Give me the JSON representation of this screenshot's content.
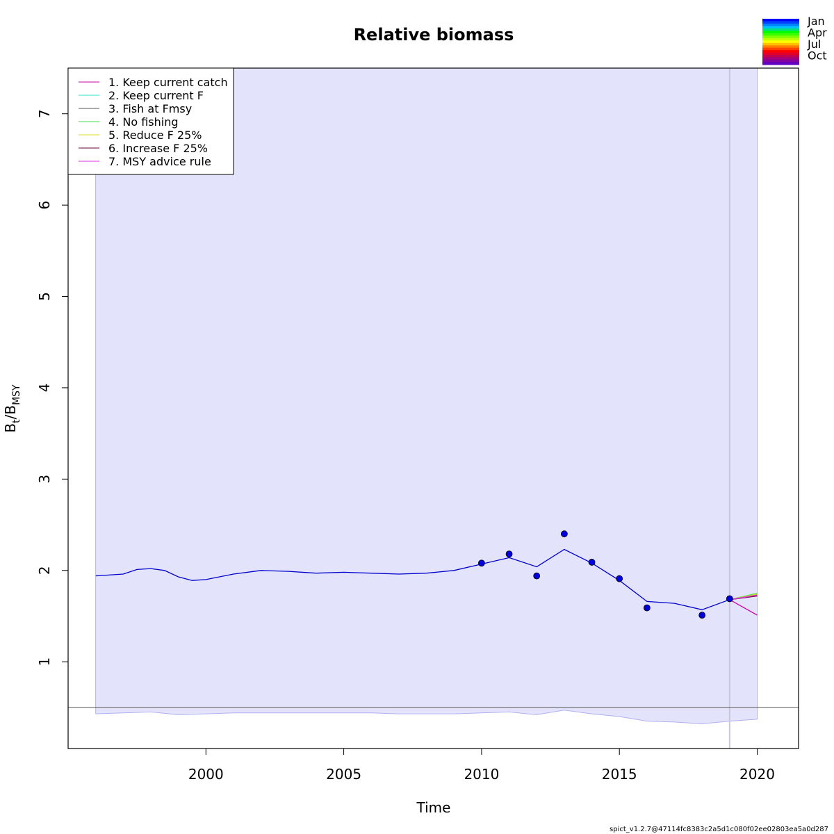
{
  "chart_data": {
    "type": "line",
    "title": "Relative biomass",
    "xlabel": "Time",
    "ylabel_main": "B",
    "ylabel_sub1": "t",
    "ylabel_sep": "/B",
    "ylabel_sub2": "MSY",
    "xlim": [
      1995,
      2021.5
    ],
    "ylim": [
      0.05,
      7.5
    ],
    "x_ticks": [
      2000,
      2005,
      2010,
      2015,
      2020
    ],
    "y_ticks": [
      1,
      2,
      3,
      4,
      5,
      6,
      7
    ],
    "grid": false,
    "legend_position": "top-left",
    "reference_line_y": 0.5,
    "forecast_start": 2019,
    "colors": {
      "ci_fill": "#e3e3fc",
      "ci_edge": "#b0b0f0",
      "estimate": "#0000cc",
      "points": "#0000dd",
      "reference": "#555555",
      "forecast_divider": "#c8c8d8"
    },
    "upper_ci": [
      [
        1996,
        7.5
      ],
      [
        2020,
        7.5
      ]
    ],
    "lower_ci": [
      [
        1996,
        0.43
      ],
      [
        1997,
        0.44
      ],
      [
        1998,
        0.45
      ],
      [
        1999,
        0.42
      ],
      [
        2000,
        0.43
      ],
      [
        2001,
        0.44
      ],
      [
        2002,
        0.44
      ],
      [
        2003,
        0.44
      ],
      [
        2004,
        0.44
      ],
      [
        2005,
        0.44
      ],
      [
        2006,
        0.44
      ],
      [
        2007,
        0.43
      ],
      [
        2008,
        0.43
      ],
      [
        2009,
        0.43
      ],
      [
        2010,
        0.44
      ],
      [
        2011,
        0.45
      ],
      [
        2012,
        0.42
      ],
      [
        2013,
        0.47
      ],
      [
        2014,
        0.43
      ],
      [
        2015,
        0.4
      ],
      [
        2016,
        0.35
      ],
      [
        2017,
        0.34
      ],
      [
        2018,
        0.32
      ],
      [
        2019,
        0.35
      ],
      [
        2020,
        0.37
      ]
    ],
    "estimate": [
      [
        1996,
        1.94
      ],
      [
        1997,
        1.96
      ],
      [
        1997.5,
        2.01
      ],
      [
        1998,
        2.02
      ],
      [
        1998.5,
        2.0
      ],
      [
        1999,
        1.93
      ],
      [
        1999.5,
        1.89
      ],
      [
        2000,
        1.9
      ],
      [
        2001,
        1.96
      ],
      [
        2002,
        2.0
      ],
      [
        2003,
        1.99
      ],
      [
        2004,
        1.97
      ],
      [
        2005,
        1.98
      ],
      [
        2006,
        1.97
      ],
      [
        2007,
        1.96
      ],
      [
        2008,
        1.97
      ],
      [
        2009,
        2.0
      ],
      [
        2010,
        2.07
      ],
      [
        2011,
        2.14
      ],
      [
        2012,
        2.04
      ],
      [
        2013,
        2.23
      ],
      [
        2014,
        2.08
      ],
      [
        2015,
        1.89
      ],
      [
        2016,
        1.66
      ],
      [
        2017,
        1.64
      ],
      [
        2018,
        1.57
      ],
      [
        2019,
        1.68
      ]
    ],
    "observations": {
      "x": [
        2010,
        2011,
        2012,
        2013,
        2014,
        2015,
        2016,
        2018,
        2019
      ],
      "y": [
        2.08,
        2.18,
        1.94,
        2.4,
        2.09,
        1.91,
        1.59,
        1.51,
        1.69
      ]
    },
    "series": [
      {
        "name": "1. Keep current catch",
        "color": "#cc00aa",
        "x": [
          2019,
          2020
        ],
        "values": [
          1.68,
          1.51
        ]
      },
      {
        "name": "2. Keep current F",
        "color": "#33ddcc",
        "x": [
          2019,
          2020
        ],
        "values": [
          1.68,
          1.73
        ]
      },
      {
        "name": "3. Fish at Fmsy",
        "color": "#555555",
        "x": [
          2019,
          2020
        ],
        "values": [
          1.68,
          1.73
        ]
      },
      {
        "name": "4. No fishing",
        "color": "#44dd44",
        "x": [
          2019,
          2020
        ],
        "values": [
          1.68,
          1.75
        ]
      },
      {
        "name": "5. Reduce F 25%",
        "color": "#dddd22",
        "x": [
          2019,
          2020
        ],
        "values": [
          1.68,
          1.74
        ]
      },
      {
        "name": "6. Increase F 25%",
        "color": "#660033",
        "x": [
          2019,
          2020
        ],
        "values": [
          1.68,
          1.72
        ]
      },
      {
        "name": "7. MSY advice rule",
        "color": "#dd33dd",
        "x": [
          2019,
          2020
        ],
        "values": [
          1.68,
          1.73
        ]
      }
    ]
  },
  "season_legend": {
    "labels": [
      "Jan",
      "Apr",
      "Jul",
      "Oct"
    ],
    "colors": [
      "#0000ff",
      "#0040ff",
      "#0080ff",
      "#00c0ff",
      "#00e080",
      "#00ff00",
      "#40ff00",
      "#80ff00",
      "#c0ff00",
      "#ffff00",
      "#ffc000",
      "#ff8000",
      "#ff4000",
      "#ff0000",
      "#e0002a",
      "#c00050",
      "#a00080",
      "#8000a0",
      "#6000c0"
    ]
  },
  "footer": {
    "version": "spict_v1.2.7@47114fc8383c2a5d1c080f02ee02803ea5a0d287"
  }
}
